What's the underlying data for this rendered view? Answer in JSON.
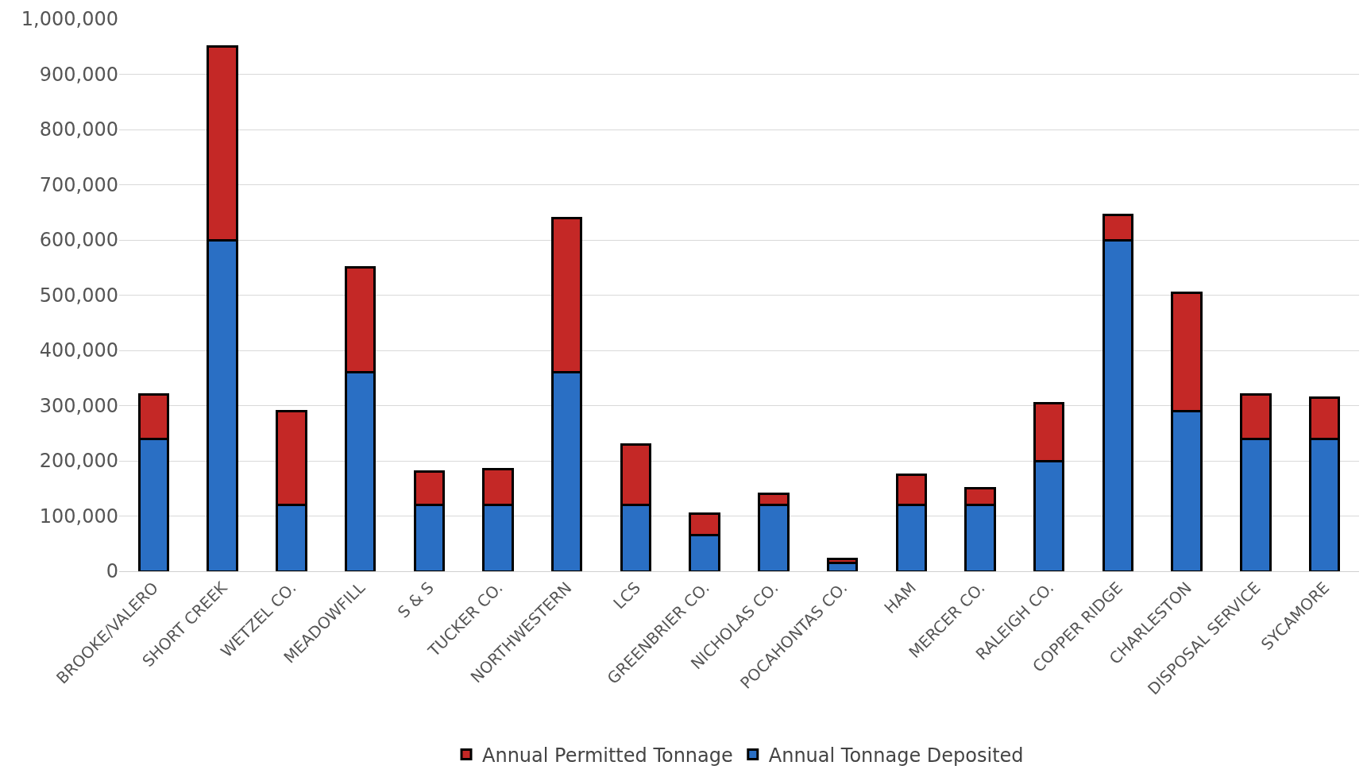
{
  "chart_data": {
    "type": "bar",
    "stacked": true,
    "categories": [
      "BROOKE/VALERO",
      "SHORT CREEK",
      "WETZEL CO.",
      "MEADOWFILL",
      "S & S",
      "TUCKER CO.",
      "NORTHWESTERN",
      "LCS",
      "GREENBRIER CO.",
      "NICHOLAS CO.",
      "POCAHONTAS CO.",
      "HAM",
      "MERCER CO.",
      "RALEIGH CO.",
      "COPPER RIDGE",
      "CHARLESTON",
      "DISPOSAL SERVICE",
      "SYCAMORE"
    ],
    "series": [
      {
        "name": "Annual Tonnage Deposited",
        "color": "#2a6fc4",
        "values": [
          240000,
          600000,
          120000,
          360000,
          120000,
          120000,
          360000,
          120000,
          65000,
          120000,
          15000,
          120000,
          120000,
          200000,
          600000,
          290000,
          240000,
          240000
        ]
      },
      {
        "name": "Annual Permitted Tonnage",
        "color": "#c42826",
        "values": [
          80000,
          350000,
          170000,
          190000,
          60000,
          65000,
          280000,
          110000,
          40000,
          20000,
          8000,
          55000,
          30000,
          105000,
          45000,
          215000,
          80000,
          75000
        ]
      }
    ],
    "ylim": [
      0,
      1000000
    ],
    "yticks": [
      {
        "value": 0,
        "label": "0"
      },
      {
        "value": 100000,
        "label": "100,000"
      },
      {
        "value": 200000,
        "label": "200,000"
      },
      {
        "value": 300000,
        "label": "300,000"
      },
      {
        "value": 400000,
        "label": "400,000"
      },
      {
        "value": 500000,
        "label": "500,000"
      },
      {
        "value": 600000,
        "label": "600,000"
      },
      {
        "value": 700000,
        "label": "700,000"
      },
      {
        "value": 800000,
        "label": "800,000"
      },
      {
        "value": 900000,
        "label": "900,000"
      },
      {
        "value": 1000000,
        "label": "1,000,000"
      }
    ],
    "grid": "y",
    "legend": "bottom"
  }
}
